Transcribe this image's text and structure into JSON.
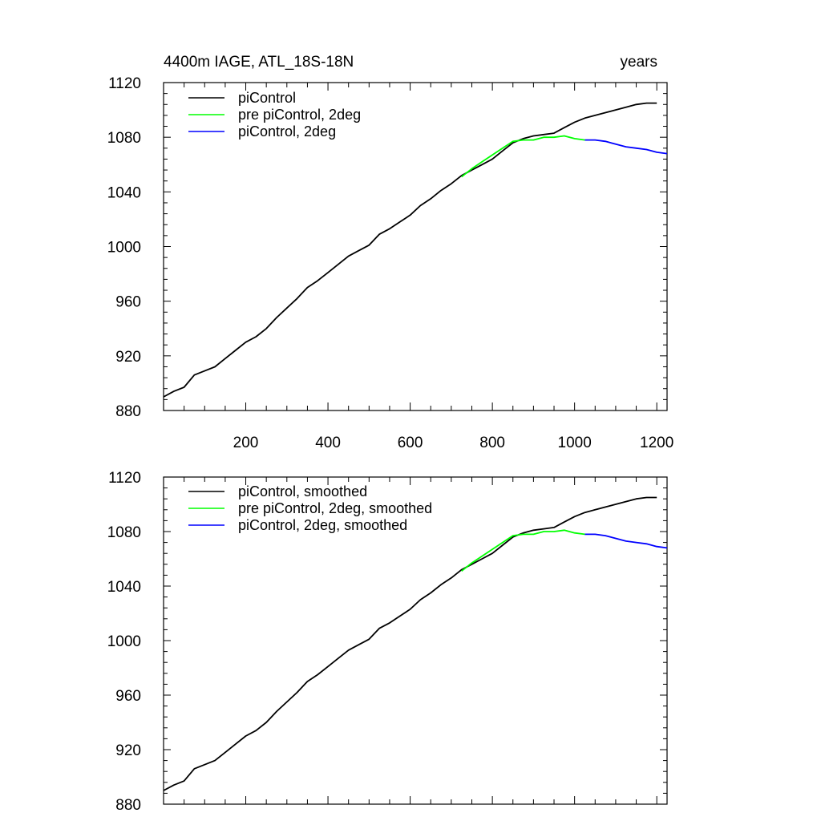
{
  "title_left": "4400m IAGE, ATL_18S-18N",
  "title_right": "years",
  "colors": {
    "piControl": "#000000",
    "pre_piControl_2deg": "#00ff00",
    "piControl_2deg": "#0000ff",
    "axis": "#000000"
  },
  "chart_data": [
    {
      "type": "line",
      "xlim": [
        0,
        1225
      ],
      "ylim": [
        880,
        1120
      ],
      "x_ticks": [
        200,
        400,
        600,
        800,
        1000,
        1200
      ],
      "x_tick_labels": [
        "200",
        "400",
        "600",
        "800",
        "1000",
        "1200"
      ],
      "y_ticks": [
        880,
        920,
        960,
        1000,
        1040,
        1080,
        1120
      ],
      "y_tick_labels": [
        "880",
        "920",
        "960",
        "1000",
        "1040",
        "1080",
        "1120"
      ],
      "grid": false,
      "legend_position": "top-left",
      "series": [
        {
          "name": "piControl",
          "color": "#000000",
          "x": [
            0,
            25,
            50,
            75,
            100,
            125,
            150,
            175,
            200,
            225,
            250,
            275,
            300,
            325,
            350,
            375,
            400,
            425,
            450,
            475,
            500,
            525,
            550,
            575,
            600,
            625,
            650,
            675,
            700,
            725,
            750,
            775,
            800,
            825,
            850,
            875,
            900,
            925,
            950,
            975,
            1000,
            1025,
            1050,
            1075,
            1100,
            1125,
            1150,
            1175,
            1200
          ],
          "y": [
            890,
            894,
            897,
            906,
            909,
            912,
            918,
            924,
            930,
            934,
            940,
            948,
            955,
            962,
            970,
            975,
            981,
            987,
            993,
            997,
            1001,
            1009,
            1013,
            1018,
            1023,
            1030,
            1035,
            1041,
            1046,
            1052,
            1056,
            1060,
            1064,
            1070,
            1076,
            1079,
            1081,
            1082,
            1083,
            1087,
            1091,
            1094,
            1096,
            1098,
            1100,
            1102,
            1104,
            1105,
            1105
          ]
        },
        {
          "name": "pre piControl, 2deg",
          "color": "#00ff00",
          "x": [
            725,
            750,
            775,
            800,
            825,
            850,
            875,
            900,
            925,
            950,
            975,
            1000,
            1025
          ],
          "y": [
            1051,
            1057,
            1062,
            1067,
            1072,
            1077,
            1078,
            1078,
            1080,
            1080,
            1081,
            1079,
            1078
          ]
        },
        {
          "name": "piControl, 2deg",
          "color": "#0000ff",
          "x": [
            1025,
            1050,
            1075,
            1100,
            1125,
            1150,
            1175,
            1200,
            1225
          ],
          "y": [
            1078,
            1078,
            1077,
            1075,
            1073,
            1072,
            1071,
            1069,
            1068
          ]
        }
      ]
    },
    {
      "type": "line",
      "xlim": [
        0,
        1225
      ],
      "ylim": [
        880,
        1120
      ],
      "x_ticks": [
        200,
        400,
        600,
        800,
        1000,
        1200
      ],
      "x_tick_labels": [],
      "y_ticks": [
        880,
        920,
        960,
        1000,
        1040,
        1080,
        1120
      ],
      "y_tick_labels": [
        "880",
        "920",
        "960",
        "1000",
        "1040",
        "1080",
        "1120"
      ],
      "grid": false,
      "legend_position": "top-left",
      "series": [
        {
          "name": "piControl, smoothed",
          "color": "#000000",
          "x": [
            0,
            25,
            50,
            75,
            100,
            125,
            150,
            175,
            200,
            225,
            250,
            275,
            300,
            325,
            350,
            375,
            400,
            425,
            450,
            475,
            500,
            525,
            550,
            575,
            600,
            625,
            650,
            675,
            700,
            725,
            750,
            775,
            800,
            825,
            850,
            875,
            900,
            925,
            950,
            975,
            1000,
            1025,
            1050,
            1075,
            1100,
            1125,
            1150,
            1175,
            1200
          ],
          "y": [
            890,
            894,
            897,
            906,
            909,
            912,
            918,
            924,
            930,
            934,
            940,
            948,
            955,
            962,
            970,
            975,
            981,
            987,
            993,
            997,
            1001,
            1009,
            1013,
            1018,
            1023,
            1030,
            1035,
            1041,
            1046,
            1052,
            1056,
            1060,
            1064,
            1070,
            1076,
            1079,
            1081,
            1082,
            1083,
            1087,
            1091,
            1094,
            1096,
            1098,
            1100,
            1102,
            1104,
            1105,
            1105
          ]
        },
        {
          "name": "pre piControl, 2deg, smoothed",
          "color": "#00ff00",
          "x": [
            725,
            750,
            775,
            800,
            825,
            850,
            875,
            900,
            925,
            950,
            975,
            1000,
            1025
          ],
          "y": [
            1051,
            1057,
            1062,
            1067,
            1072,
            1077,
            1078,
            1078,
            1080,
            1080,
            1081,
            1079,
            1078
          ]
        },
        {
          "name": "piControl, 2deg, smoothed",
          "color": "#0000ff",
          "x": [
            1025,
            1050,
            1075,
            1100,
            1125,
            1150,
            1175,
            1200,
            1225
          ],
          "y": [
            1078,
            1078,
            1077,
            1075,
            1073,
            1072,
            1071,
            1069,
            1068
          ]
        }
      ]
    }
  ]
}
